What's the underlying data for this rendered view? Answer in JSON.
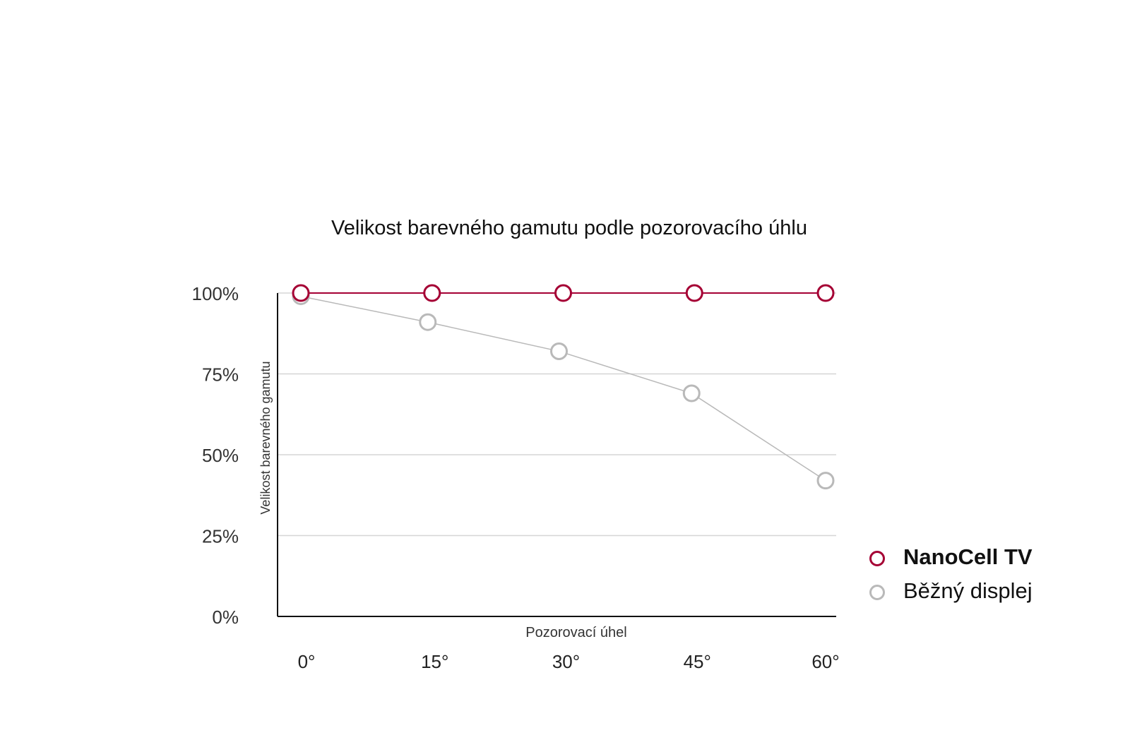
{
  "chart_data": {
    "type": "line",
    "title": "Velikost barevného gamutu podle pozorovacího úhlu",
    "xlabel": "Pozorovací úhel",
    "ylabel": "Velikost barevného gamutu",
    "categories": [
      "0°",
      "15°",
      "30°",
      "45°",
      "60°"
    ],
    "y_ticks": [
      "0%",
      "25%",
      "50%",
      "75%",
      "100%"
    ],
    "ylim": [
      0,
      100
    ],
    "grid": true,
    "legend_position": "right",
    "series": [
      {
        "name": "NanoCell TV",
        "values": [
          100,
          100,
          100,
          100,
          100
        ],
        "color": "#a50034",
        "bold": true
      },
      {
        "name": "Běžný displej",
        "values": [
          99,
          91,
          82,
          69,
          42
        ],
        "color": "#b9b9b9",
        "bold": false
      }
    ]
  }
}
